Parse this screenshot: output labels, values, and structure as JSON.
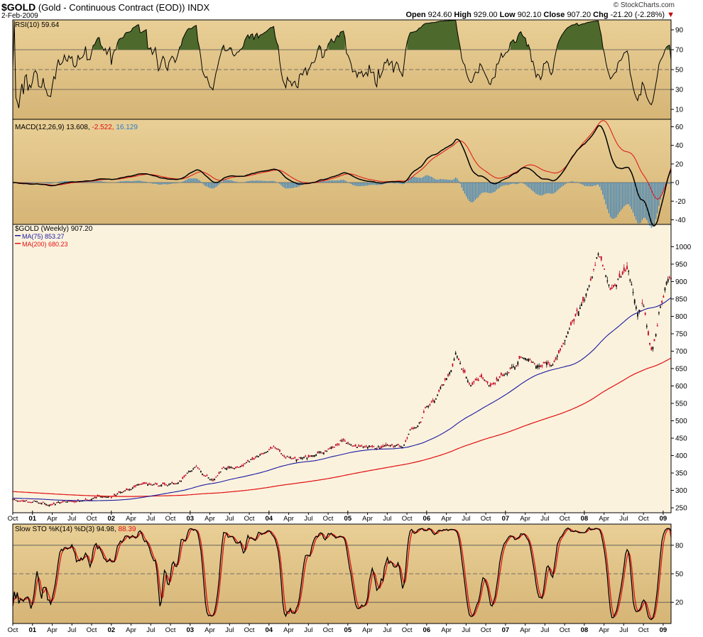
{
  "header": {
    "symbol": "$GOLD",
    "description": "(Gold - Continuous Contract (EOD))",
    "exchange": "INDX",
    "date": "2-Feb-2009",
    "brand": "© StockCharts.com",
    "open_label": "Open",
    "open": "924.60",
    "high_label": "High",
    "high": "929.00",
    "low_label": "Low",
    "low": "902.10",
    "close_label": "Close",
    "close": "907.20",
    "chg_label": "Chg",
    "chg": "-21.20 (-2.28%)",
    "chg_arrow": "▼"
  },
  "colors": {
    "panel_bg_top": "#e9cf96",
    "panel_bg_bottom": "#d6b576",
    "price_bg": "#fbf2de",
    "black_line": "#000000",
    "signal_red": "#e01010",
    "ma75_blue": "#1a1aa0",
    "ma200_red": "#e01010",
    "hist_blue": "#2a7fc8",
    "rsi_fill": "#4d6a2c",
    "up_bar": "#000000",
    "down_bar": "#c4001c"
  },
  "chart_data": [
    {
      "type": "line",
      "panel": "rsi",
      "title": "RSI(10) 59.64",
      "ylim": [
        0,
        100
      ],
      "yticks": [
        10,
        30,
        50,
        70,
        90
      ],
      "reference_lines": [
        30,
        50,
        70
      ],
      "last_value": 59.64
    },
    {
      "type": "line",
      "panel": "macd",
      "title_prefix": "MACD(12,26,9)",
      "macd_value": "13.608",
      "histogram_value": "-2.522",
      "signal_value": "16.129",
      "ylim": [
        -45,
        68
      ],
      "yticks": [
        -40,
        -20,
        0,
        20,
        40,
        60
      ]
    },
    {
      "type": "line",
      "panel": "price",
      "title": "$GOLD (Weekly) 907.20",
      "legend": [
        {
          "name": "MA(75) 853.27",
          "color": "#1a1aa0"
        },
        {
          "name": "MA(200) 680.23",
          "color": "#e01010"
        }
      ],
      "ylim": [
        240,
        1060
      ],
      "yticks": [
        250,
        300,
        350,
        400,
        450,
        500,
        550,
        600,
        650,
        700,
        750,
        800,
        850,
        900,
        950,
        1000
      ],
      "x_range": [
        2000.75,
        2009.1
      ],
      "close_anchors": [
        [
          2000.75,
          272
        ],
        [
          2001.0,
          268
        ],
        [
          2001.2,
          258
        ],
        [
          2001.4,
          268
        ],
        [
          2001.55,
          266
        ],
        [
          2001.7,
          275
        ],
        [
          2001.85,
          283
        ],
        [
          2002.0,
          280
        ],
        [
          2002.15,
          298
        ],
        [
          2002.35,
          320
        ],
        [
          2002.5,
          318
        ],
        [
          2002.7,
          318
        ],
        [
          2002.85,
          320
        ],
        [
          2002.95,
          345
        ],
        [
          2003.08,
          370
        ],
        [
          2003.15,
          350
        ],
        [
          2003.3,
          330
        ],
        [
          2003.42,
          365
        ],
        [
          2003.6,
          360
        ],
        [
          2003.75,
          385
        ],
        [
          2003.9,
          400
        ],
        [
          2004.0,
          415
        ],
        [
          2004.1,
          420
        ],
        [
          2004.25,
          395
        ],
        [
          2004.35,
          390
        ],
        [
          2004.5,
          400
        ],
        [
          2004.7,
          410
        ],
        [
          2004.85,
          430
        ],
        [
          2004.95,
          445
        ],
        [
          2005.05,
          425
        ],
        [
          2005.2,
          430
        ],
        [
          2005.4,
          425
        ],
        [
          2005.55,
          420
        ],
        [
          2005.7,
          430
        ],
        [
          2005.8,
          470
        ],
        [
          2005.92,
          500
        ],
        [
          2006.0,
          545
        ],
        [
          2006.1,
          560
        ],
        [
          2006.2,
          600
        ],
        [
          2006.3,
          640
        ],
        [
          2006.37,
          700
        ],
        [
          2006.45,
          650
        ],
        [
          2006.55,
          600
        ],
        [
          2006.7,
          630
        ],
        [
          2006.8,
          600
        ],
        [
          2006.95,
          630
        ],
        [
          2007.1,
          650
        ],
        [
          2007.2,
          680
        ],
        [
          2007.35,
          670
        ],
        [
          2007.45,
          660
        ],
        [
          2007.6,
          660
        ],
        [
          2007.7,
          700
        ],
        [
          2007.8,
          750
        ],
        [
          2007.9,
          810
        ],
        [
          2008.0,
          850
        ],
        [
          2008.1,
          920
        ],
        [
          2008.18,
          970
        ],
        [
          2008.25,
          940
        ],
        [
          2008.33,
          880
        ],
        [
          2008.42,
          900
        ],
        [
          2008.5,
          920
        ],
        [
          2008.55,
          940
        ],
        [
          2008.62,
          880
        ],
        [
          2008.68,
          810
        ],
        [
          2008.75,
          840
        ],
        [
          2008.8,
          760
        ],
        [
          2008.85,
          700
        ],
        [
          2008.9,
          740
        ],
        [
          2008.95,
          820
        ],
        [
          2009.0,
          860
        ],
        [
          2009.05,
          920
        ],
        [
          2009.09,
          907
        ]
      ],
      "ma75_last": 853.27,
      "ma200_last": 680.23,
      "last_close": 907.2
    },
    {
      "type": "line",
      "panel": "stoch",
      "title_prefix": "Slow STO %K(14) %D(3)",
      "k_value": "94.98",
      "d_value": "88.39",
      "ylim": [
        0,
        100
      ],
      "yticks": [
        20,
        50,
        80
      ],
      "reference_lines": [
        20,
        50,
        80
      ]
    }
  ],
  "price_axis_labels": [
    "Oct",
    "01",
    "Apr",
    "Jul",
    "Oct",
    "02",
    "Apr",
    "Jul",
    "Oct",
    "03",
    "Apr",
    "Jul",
    "Oct",
    "04",
    "Apr",
    "Jul",
    "Oct",
    "05",
    "Apr",
    "Jul",
    "Oct",
    "06",
    "Apr",
    "Jul",
    "Oct",
    "07",
    "Apr",
    "Jul",
    "Oct",
    "08",
    "Apr",
    "Jul",
    "Oct",
    "09"
  ],
  "bottom_axis_labels": [
    "Oct",
    "01",
    "Apr",
    "Jul",
    "Oct",
    "02",
    "Apr",
    "Jul",
    "Oct",
    "03",
    "Apr",
    "Jul",
    "Oct",
    "04",
    "Apr",
    "Jul",
    "Oct",
    "05",
    "Apr",
    "Jul",
    "Oct",
    "06",
    "Apr",
    "Jul",
    "Oct",
    "07",
    "Apr",
    "Jul",
    "Oct",
    "08",
    "Apr",
    "Jul",
    "Oct",
    "09"
  ]
}
